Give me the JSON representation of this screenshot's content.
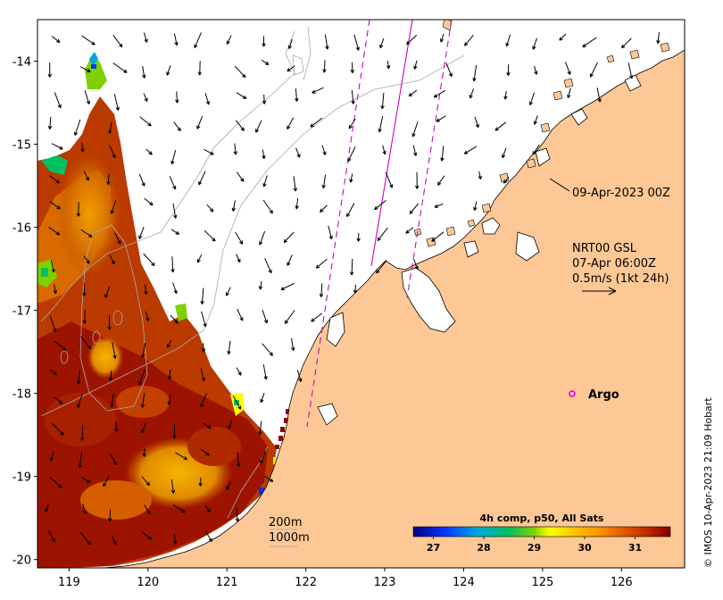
{
  "map": {
    "lon_ticks": [
      "119",
      "120",
      "121",
      "122",
      "123",
      "124",
      "125",
      "126"
    ],
    "lat_ticks": [
      "-14",
      "-15",
      "-16",
      "-17",
      "-18",
      "-19",
      "-20"
    ],
    "lon_range": [
      118.6,
      126.8
    ],
    "lat_range": [
      -20.1,
      -13.5
    ]
  },
  "annotations": {
    "timestamp": "09-Apr-2023 00Z",
    "current_title": "NRT00 GSL",
    "current_time": "07-Apr 06:00Z",
    "current_scale": "0.5m/s (1kt 24h)",
    "argo_label": "Argo",
    "isobath_200": "200m",
    "isobath_1000": "1000m"
  },
  "colorbar": {
    "title": "4h comp, p50, All Sats",
    "ticks": [
      "27",
      "28",
      "29",
      "30",
      "31"
    ],
    "tick_values": [
      27,
      28,
      29,
      30,
      31
    ],
    "range": [
      26.6,
      31.7
    ]
  },
  "credit": "© IMOS 10-Apr-2023 21:09 Hobart",
  "colors": {
    "land": "#fdc895",
    "sst_hot": "#8c0a00",
    "argo": "#dd00dd",
    "track": "#cc00cc"
  }
}
